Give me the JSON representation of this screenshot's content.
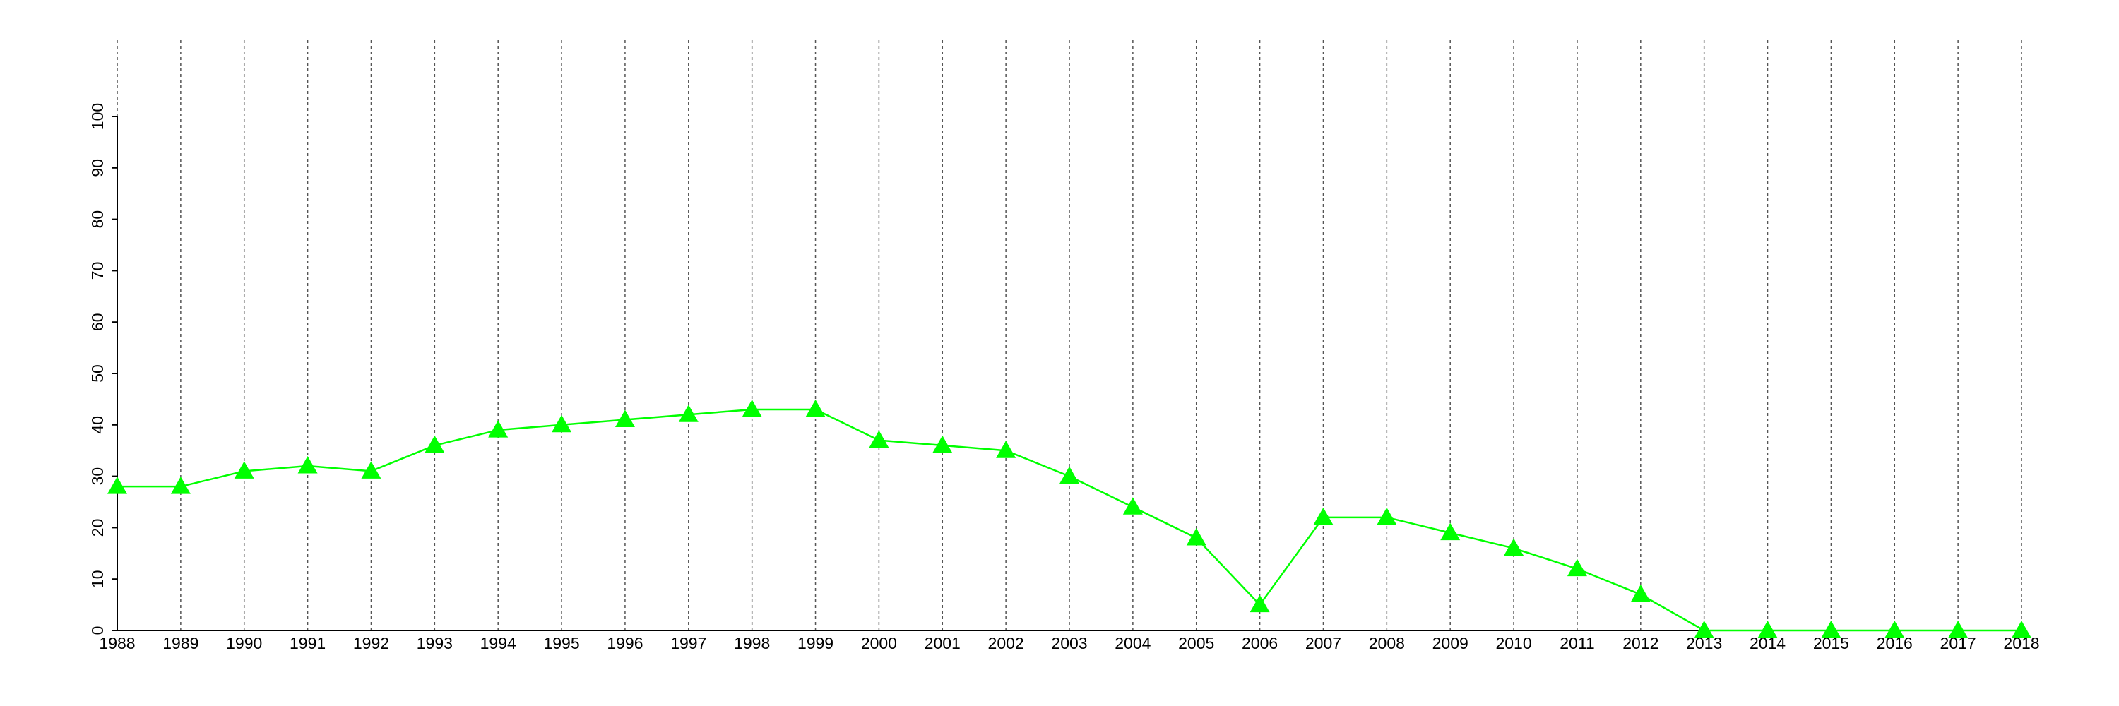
{
  "chart_data": {
    "type": "line",
    "x": [
      1988,
      1989,
      1990,
      1991,
      1992,
      1993,
      1994,
      1995,
      1996,
      1997,
      1998,
      1999,
      2000,
      2001,
      2002,
      2003,
      2004,
      2005,
      2006,
      2007,
      2008,
      2009,
      2010,
      2011,
      2012,
      2013,
      2014,
      2015,
      2016,
      2017,
      2018
    ],
    "series": [
      {
        "color": "#00ff00",
        "marker": "triangle",
        "values": [
          28,
          28,
          31,
          32,
          31,
          36,
          39,
          40,
          41,
          42,
          43,
          43,
          37,
          36,
          35,
          30,
          24,
          18,
          5,
          22,
          22,
          19,
          16,
          12,
          7,
          0,
          0,
          0,
          0,
          0,
          0
        ]
      }
    ],
    "xlim": [
      1988,
      2018
    ],
    "xticks": [
      1988,
      1989,
      1990,
      1991,
      1992,
      1993,
      1994,
      1995,
      1996,
      1997,
      1998,
      1999,
      2000,
      2001,
      2002,
      2003,
      2004,
      2005,
      2006,
      2007,
      2008,
      2009,
      2010,
      2011,
      2012,
      2013,
      2014,
      2015,
      2016,
      2017,
      2018
    ],
    "ylim": [
      0,
      100
    ],
    "yticks": [
      0,
      10,
      20,
      30,
      40,
      50,
      60,
      70,
      80,
      90,
      100
    ],
    "grid": true
  }
}
